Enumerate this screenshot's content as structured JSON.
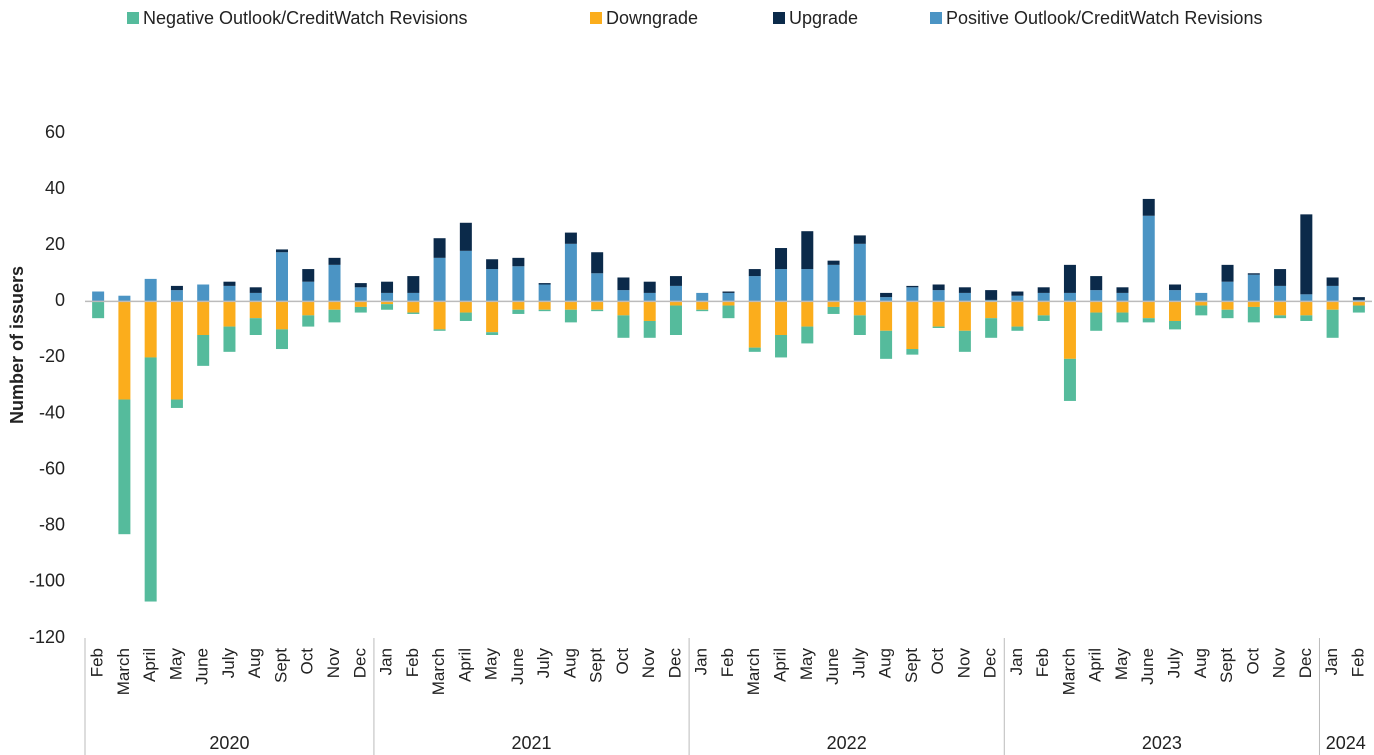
{
  "chart_data": {
    "type": "bar",
    "stacked": true,
    "y_label": "Number of issuers",
    "ylim": [
      -120,
      60
    ],
    "yticks": [
      -120,
      -100,
      -80,
      -60,
      -40,
      -20,
      0,
      20,
      40,
      60
    ],
    "category_groups": [
      {
        "label": "2020",
        "categories": [
          "Feb",
          "March",
          "April",
          "May",
          "June",
          "July",
          "Aug",
          "Sept",
          "Oct",
          "Nov",
          "Dec"
        ]
      },
      {
        "label": "2021",
        "categories": [
          "Jan",
          "Feb",
          "March",
          "April",
          "May",
          "June",
          "July",
          "Aug",
          "Sept",
          "Oct",
          "Nov",
          "Dec"
        ]
      },
      {
        "label": "2022",
        "categories": [
          "Jan",
          "Feb",
          "March",
          "April",
          "May",
          "June",
          "July",
          "Aug",
          "Sept",
          "Oct",
          "Nov",
          "Dec"
        ]
      },
      {
        "label": "2023",
        "categories": [
          "Jan",
          "Feb",
          "March",
          "April",
          "May",
          "June",
          "July",
          "Aug",
          "Sept",
          "Oct",
          "Nov",
          "Dec"
        ]
      },
      {
        "label": "2024",
        "categories": [
          "Jan",
          "Feb"
        ]
      }
    ],
    "series": [
      {
        "name": "Negative Outlook/CreditWatch Revisions",
        "color": "#55bb9c",
        "values": [
          -6,
          -48,
          -87,
          -3,
          -11,
          -9,
          -6,
          -7,
          -4,
          -4.5,
          -2,
          -2,
          -0.5,
          -0.5,
          -3,
          -1,
          -1.5,
          -0.5,
          -4.5,
          -0.5,
          -8,
          -6,
          -10.5,
          -0.5,
          -4.5,
          -1.5,
          -8,
          -6,
          -2.5,
          -7,
          -10,
          -2,
          -0.5,
          -7.5,
          -7,
          -1.5,
          -2,
          -15,
          -6.5,
          -3.5,
          -1.5,
          -3,
          -3.5,
          -3,
          -5.5,
          -1,
          -2,
          -10,
          -2.5
        ]
      },
      {
        "name": "Downgrade",
        "color": "#fbad1c",
        "values": [
          0,
          -35,
          -20,
          -35,
          -12,
          -9,
          -6,
          -10,
          -5,
          -3,
          -2,
          -1,
          -4,
          -10,
          -4,
          -11,
          -3,
          -3,
          -3,
          -3,
          -5,
          -7,
          -1.5,
          -3,
          -1.5,
          -16.5,
          -12,
          -9,
          -2,
          -5,
          -10.5,
          -17,
          -9,
          -10.5,
          -6,
          -9,
          -5,
          -20.5,
          -4,
          -4,
          -6,
          -7,
          -1.5,
          -3,
          -2,
          -5,
          -5,
          -3,
          -1.5
        ]
      },
      {
        "name": "Upgrade",
        "color": "#0b2a4a",
        "values": [
          0,
          0,
          0,
          1.5,
          0,
          1.5,
          2,
          1,
          4.5,
          2.5,
          1.5,
          4,
          6,
          7,
          10,
          3.5,
          3,
          0.5,
          4,
          7.5,
          4.5,
          4,
          3.5,
          0,
          0.5,
          2.5,
          7.5,
          13.5,
          1.5,
          3,
          1.5,
          0.5,
          2,
          2,
          3.5,
          1.5,
          2,
          10,
          5,
          2,
          6,
          2,
          0,
          6,
          0.5,
          6,
          28.5,
          3,
          1
        ]
      },
      {
        "name": "Positive Outlook/CreditWatch Revisions",
        "color": "#4b94c4",
        "values": [
          3.5,
          2,
          8,
          4,
          6,
          5.5,
          3,
          17.5,
          7,
          13,
          5,
          3,
          3,
          15.5,
          18,
          11.5,
          12.5,
          6,
          20.5,
          10,
          4,
          3,
          5.5,
          3,
          3,
          9,
          11.5,
          11.5,
          13,
          20.5,
          1.5,
          5,
          4,
          3,
          0.5,
          2,
          3,
          3,
          4,
          3,
          30.5,
          4,
          3,
          7,
          9.5,
          5.5,
          2.5,
          5.5,
          0.5
        ]
      }
    ]
  }
}
